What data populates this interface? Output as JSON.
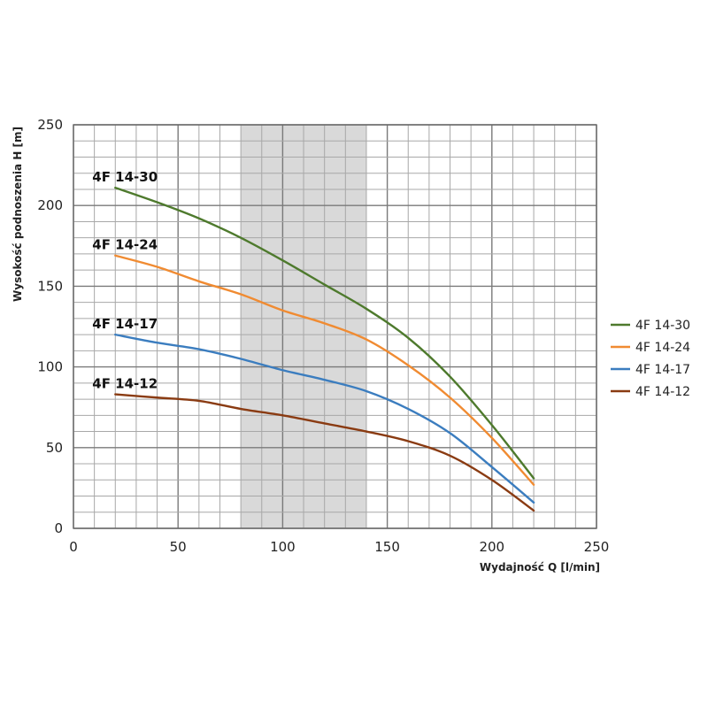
{
  "chart_data": {
    "type": "line",
    "xlabel": "Wydajność Q [l/min]",
    "ylabel": "Wysokość podnoszenia H [m]",
    "xlim": [
      0,
      250
    ],
    "ylim": [
      0,
      250
    ],
    "x_ticks": [
      0,
      50,
      100,
      150,
      200,
      250
    ],
    "y_ticks": [
      0,
      50,
      100,
      150,
      200,
      250
    ],
    "x_minor_step": 10,
    "y_minor_step": 10,
    "grid": true,
    "highlight_band": {
      "x": [
        80,
        140
      ],
      "color": "#d9d9d9"
    },
    "legend_position": "right",
    "series": [
      {
        "name": "4F 14-30",
        "color": "#4e7a2d",
        "x": [
          20,
          40,
          60,
          80,
          100,
          120,
          140,
          160,
          180,
          200,
          220
        ],
        "y": [
          211,
          202,
          192,
          180,
          166,
          151,
          136,
          118,
          94,
          64,
          31
        ]
      },
      {
        "name": "4F 14-24",
        "color": "#f08b32",
        "x": [
          20,
          40,
          60,
          80,
          100,
          120,
          140,
          160,
          180,
          200,
          220
        ],
        "y": [
          169,
          162,
          153,
          145,
          135,
          127,
          117,
          101,
          81,
          56,
          27
        ]
      },
      {
        "name": "4F 14-17",
        "color": "#3b7dbf",
        "x": [
          20,
          40,
          60,
          80,
          100,
          120,
          140,
          160,
          180,
          200,
          220
        ],
        "y": [
          120,
          115,
          111,
          105,
          98,
          92,
          85,
          74,
          59,
          38,
          16
        ]
      },
      {
        "name": "4F 14-12",
        "color": "#8a3b12",
        "x": [
          20,
          40,
          60,
          80,
          100,
          120,
          140,
          160,
          180,
          200,
          220
        ],
        "y": [
          83,
          81,
          79,
          74,
          70,
          65,
          60,
          54,
          45,
          30,
          11
        ]
      }
    ]
  }
}
